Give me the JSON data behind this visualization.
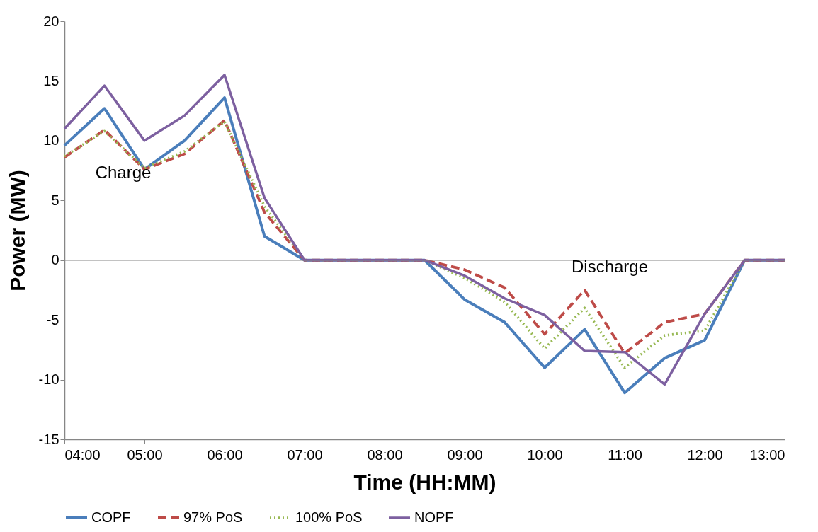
{
  "chart_data": {
    "type": "line",
    "xlabel": "Time (HH:MM)",
    "ylabel": "Power (MW)",
    "x": [
      4,
      4.5,
      5,
      5.5,
      6,
      6.5,
      7,
      7.5,
      8,
      8.5,
      9,
      9.5,
      10,
      10.5,
      11,
      11.5,
      12,
      12.5,
      13
    ],
    "series": [
      {
        "name": "COPF",
        "color": "#4a7ebb",
        "line_style": "solid",
        "values": [
          9.6,
          12.7,
          7.6,
          10.0,
          13.6,
          2.0,
          0,
          0,
          0,
          0,
          -3.3,
          -5.2,
          -9.0,
          -5.8,
          -11.1,
          -8.2,
          -6.7,
          0,
          0
        ]
      },
      {
        "name": "97% PoS",
        "color": "#be4b48",
        "line_style": "dashed",
        "values": [
          8.6,
          10.9,
          7.6,
          8.9,
          11.7,
          4.0,
          0,
          0,
          0,
          0,
          -0.8,
          -2.3,
          -6.2,
          -2.5,
          -7.8,
          -5.2,
          -4.5,
          0,
          0
        ]
      },
      {
        "name": "100% PoS",
        "color": "#98b954",
        "line_style": "dotted",
        "values": [
          8.7,
          10.8,
          7.7,
          9.1,
          11.6,
          4.5,
          0,
          0,
          0,
          0,
          -1.5,
          -3.5,
          -7.4,
          -4.0,
          -9.0,
          -6.3,
          -5.9,
          0,
          0
        ]
      },
      {
        "name": "NOPF",
        "color": "#7d60a0",
        "line_style": "solid",
        "values": [
          11.0,
          14.6,
          10.0,
          12.1,
          15.5,
          5.2,
          0,
          0,
          0,
          0,
          -1.3,
          -3.2,
          -4.6,
          -7.6,
          -7.7,
          -10.4,
          -4.5,
          0,
          0
        ]
      }
    ],
    "xlim": [
      4,
      13
    ],
    "xticks": [
      {
        "value": 4,
        "label": "04:00"
      },
      {
        "value": 5,
        "label": "05:00"
      },
      {
        "value": 6,
        "label": "06:00"
      },
      {
        "value": 7,
        "label": "07:00"
      },
      {
        "value": 8,
        "label": "08:00"
      },
      {
        "value": 9,
        "label": "09:00"
      },
      {
        "value": 10,
        "label": "10:00"
      },
      {
        "value": 11,
        "label": "11:00"
      },
      {
        "value": 12,
        "label": "12:00"
      },
      {
        "value": 13,
        "label": "13:00"
      }
    ],
    "ylim": [
      -15,
      20
    ],
    "yticks": [
      -15,
      -10,
      -5,
      0,
      5,
      10,
      15,
      20
    ],
    "ref_lines": [
      {
        "axis": "y",
        "value": 0,
        "color": "#868686"
      }
    ],
    "annotations": [
      "Charge",
      "Discharge"
    ],
    "grid": false,
    "legend": "bottom",
    "marker": "none"
  }
}
